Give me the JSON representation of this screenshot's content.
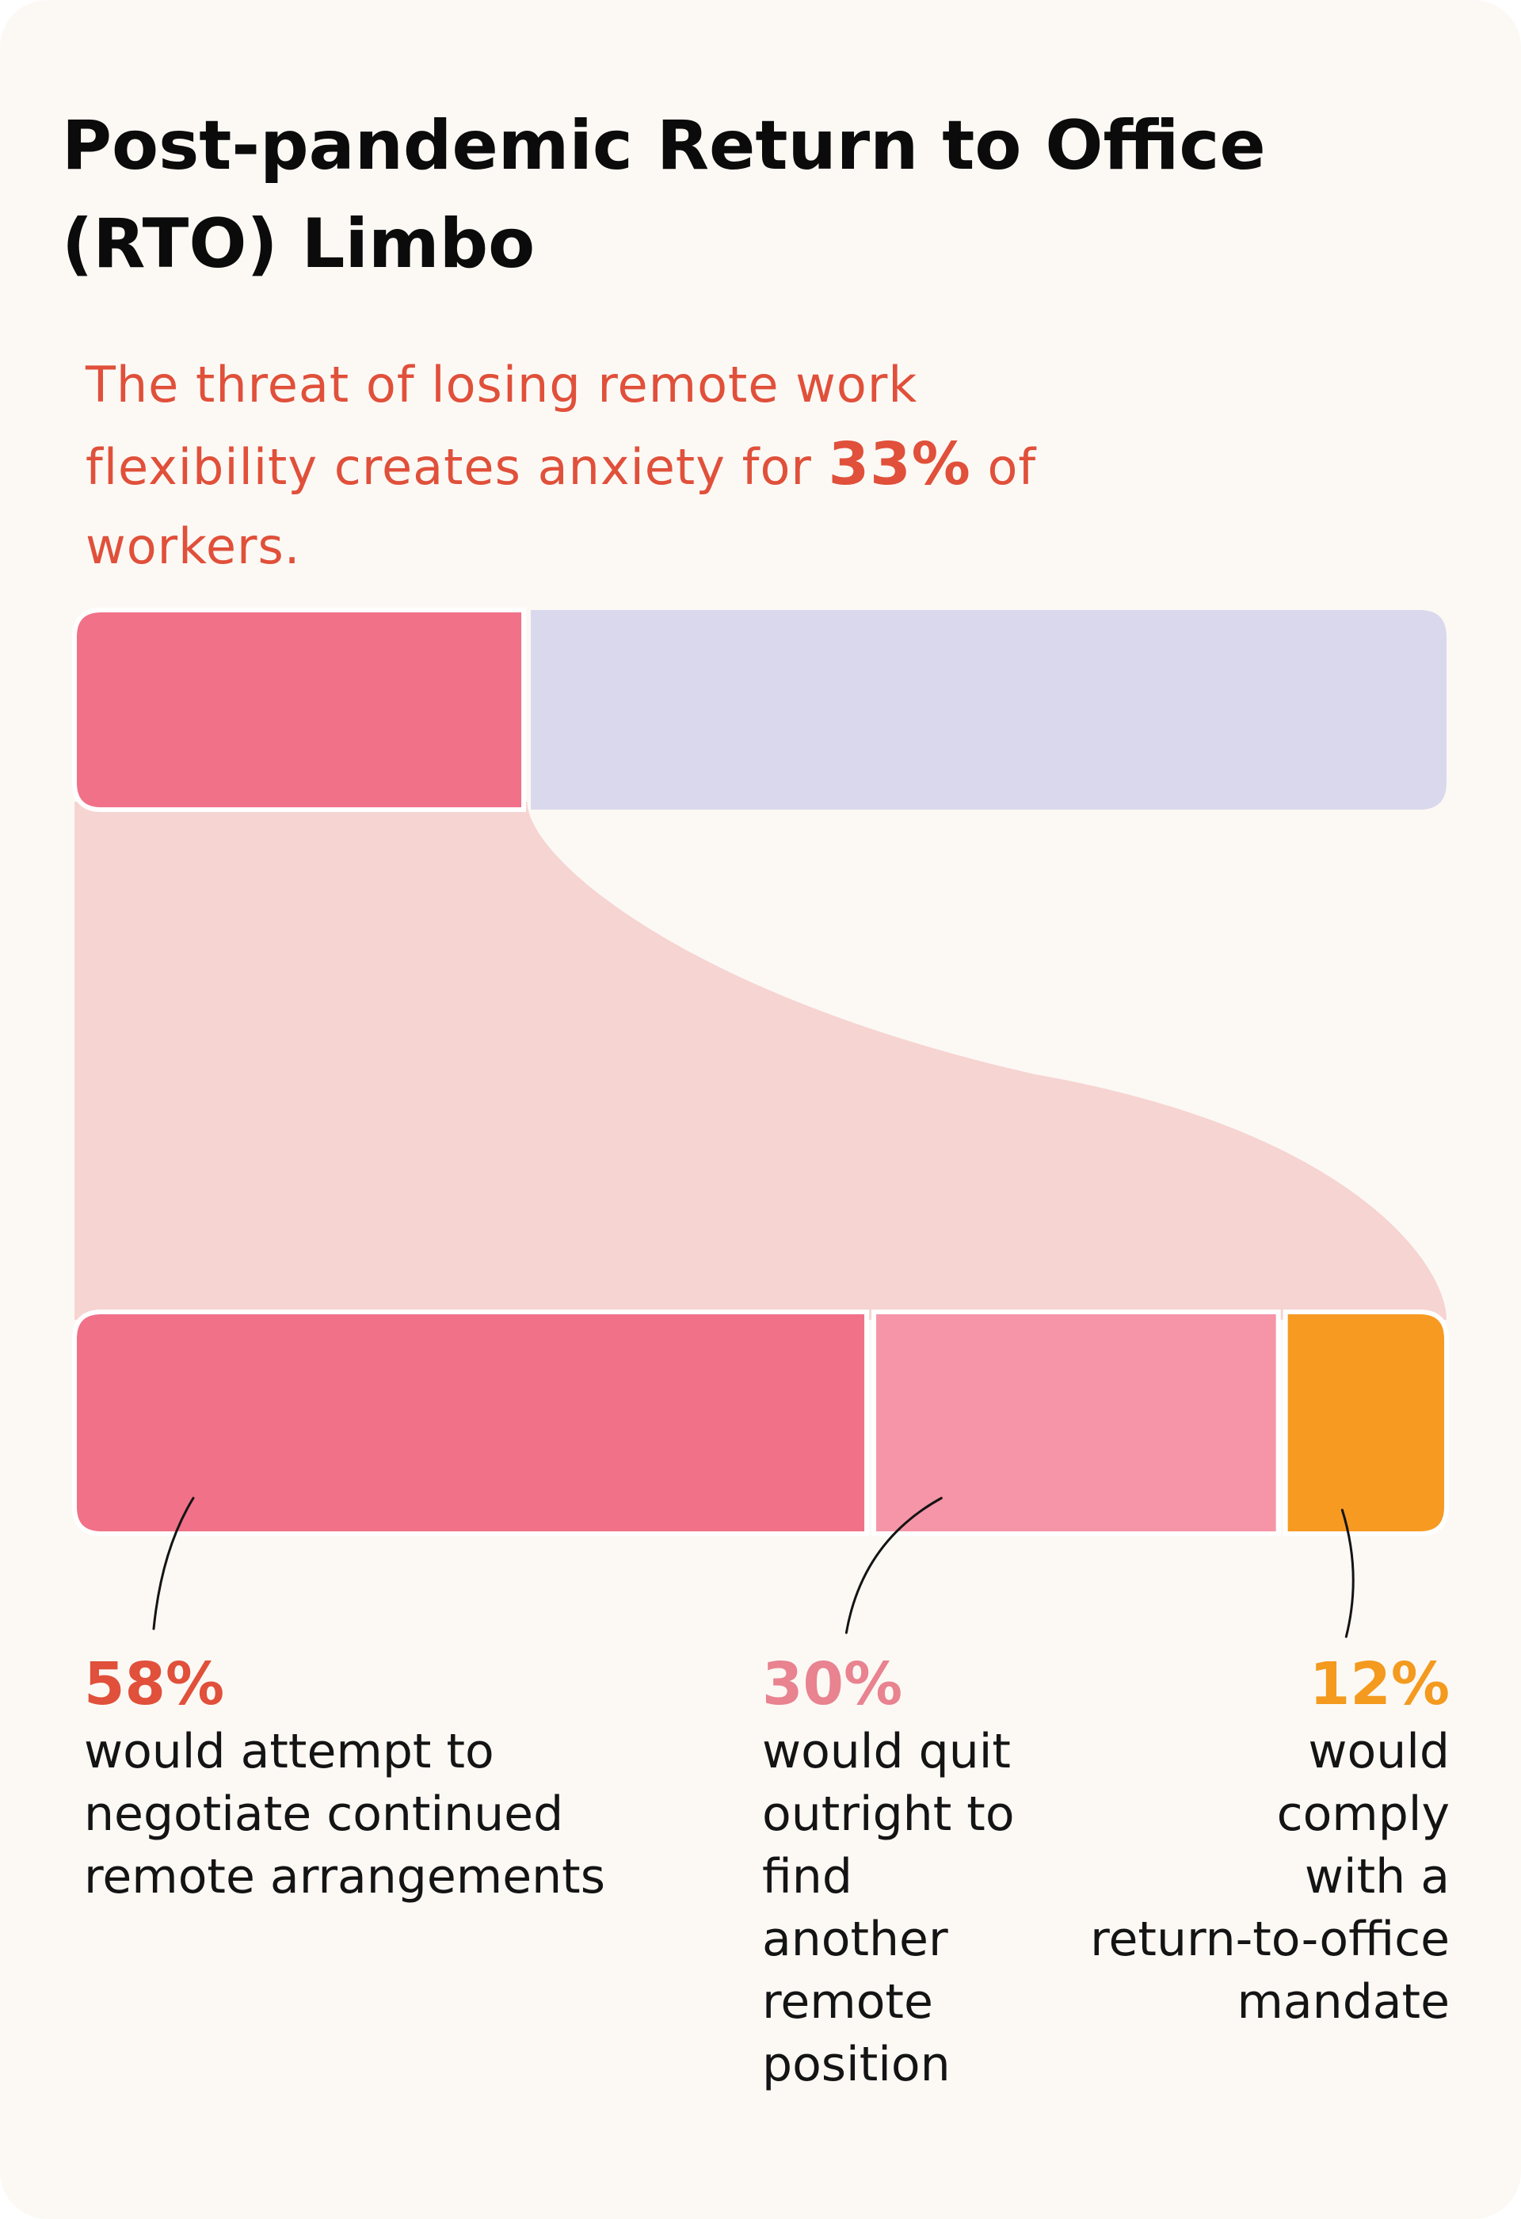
{
  "title": "Post-pandemic Return to Office (RTO) Limbo",
  "subtitle": {
    "before": "The threat of losing remote work flexibility creates anxiety for ",
    "highlight": "33%",
    "after": " of workers."
  },
  "colors": {
    "background": "#fcf9f5",
    "anxious": "#f07188",
    "not_anxious": "#dad8ec",
    "flow": "#f6d4d2",
    "negotiate": "#f07188",
    "quit": "#f595a7",
    "comply": "#f79a22",
    "accent_text": "#e0503a"
  },
  "chart_data": {
    "type": "bar",
    "title": "Post-pandemic Return to Office (RTO) Limbo",
    "top_bar": {
      "values": [
        33,
        67
      ]
    },
    "bottom_bar": {
      "categories": [
        "would attempt to negotiate continued remote arrangements",
        "would quit outright to find another remote position",
        "would comply with a return-to-office mandate"
      ],
      "values": [
        58,
        30,
        12
      ]
    }
  },
  "labels": [
    {
      "pct": "58%",
      "desc": "would attempt to\nnegotiate continued\nremote arrangements"
    },
    {
      "pct": "30%",
      "desc": "would quit\noutright to\nfind\nanother\nremote\nposition"
    },
    {
      "pct": "12%",
      "desc": "would\ncomply\nwith a\nreturn-to-office\nmandate"
    }
  ]
}
